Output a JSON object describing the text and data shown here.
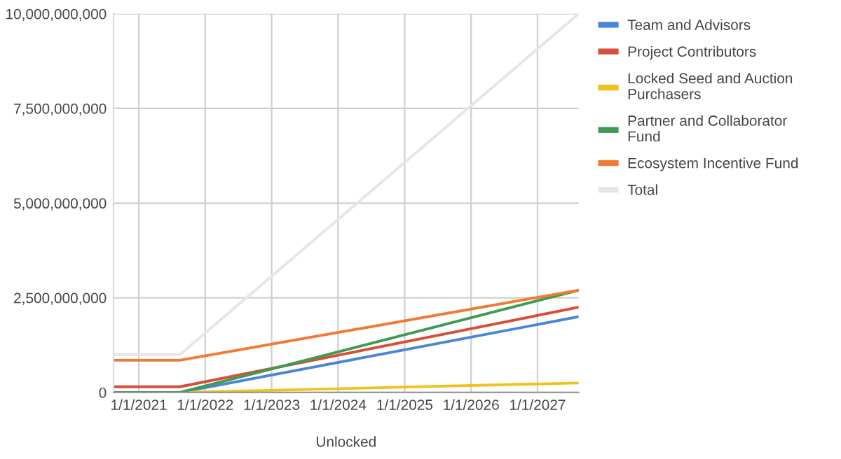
{
  "chart_data": {
    "type": "line",
    "xlabel": "Unlocked",
    "x": [
      "2020-08-15",
      "2021-08-15",
      "2027-08-15"
    ],
    "series": [
      {
        "name": "Team and Advisors",
        "color": "#4a86d8",
        "values": [
          0,
          0,
          2000000000
        ]
      },
      {
        "name": "Project Contributors",
        "color": "#d64f3b",
        "values": [
          150000000,
          150000000,
          2250000000
        ]
      },
      {
        "name": "Locked Seed and Auction Purchasers",
        "color": "#f2c11b",
        "values": [
          0,
          0,
          250000000
        ]
      },
      {
        "name": "Partner and Collaborator Fund",
        "color": "#3f9b52",
        "values": [
          0,
          0,
          2700000000
        ]
      },
      {
        "name": "Ecosystem Incentive Fund",
        "color": "#f07b32",
        "values": [
          850000000,
          850000000,
          2700000000
        ]
      },
      {
        "name": "Total",
        "color": "#e6e6e6",
        "values": [
          1000000000,
          1000000000,
          10000000000
        ]
      }
    ],
    "xlim": [
      "2020-08-15",
      "2027-08-15"
    ],
    "xticks": [
      {
        "value": "2021-01-01",
        "label": "1/1/2021"
      },
      {
        "value": "2022-01-01",
        "label": "1/1/2022"
      },
      {
        "value": "2023-01-01",
        "label": "1/1/2023"
      },
      {
        "value": "2024-01-01",
        "label": "1/1/2024"
      },
      {
        "value": "2025-01-01",
        "label": "1/1/2025"
      },
      {
        "value": "2026-01-01",
        "label": "1/1/2026"
      },
      {
        "value": "2027-01-01",
        "label": "1/1/2027"
      }
    ],
    "ylim": [
      0,
      10000000000
    ],
    "yticks": [
      {
        "value": 0,
        "label": "0"
      },
      {
        "value": 2500000000,
        "label": "2,500,000,000"
      },
      {
        "value": 5000000000,
        "label": "5,000,000,000"
      },
      {
        "value": 7500000000,
        "label": "7,500,000,000"
      },
      {
        "value": 10000000000,
        "label": "10,000,000,000"
      }
    ],
    "grid": true,
    "legend": "right",
    "marker": "none",
    "line_style": "solid"
  }
}
